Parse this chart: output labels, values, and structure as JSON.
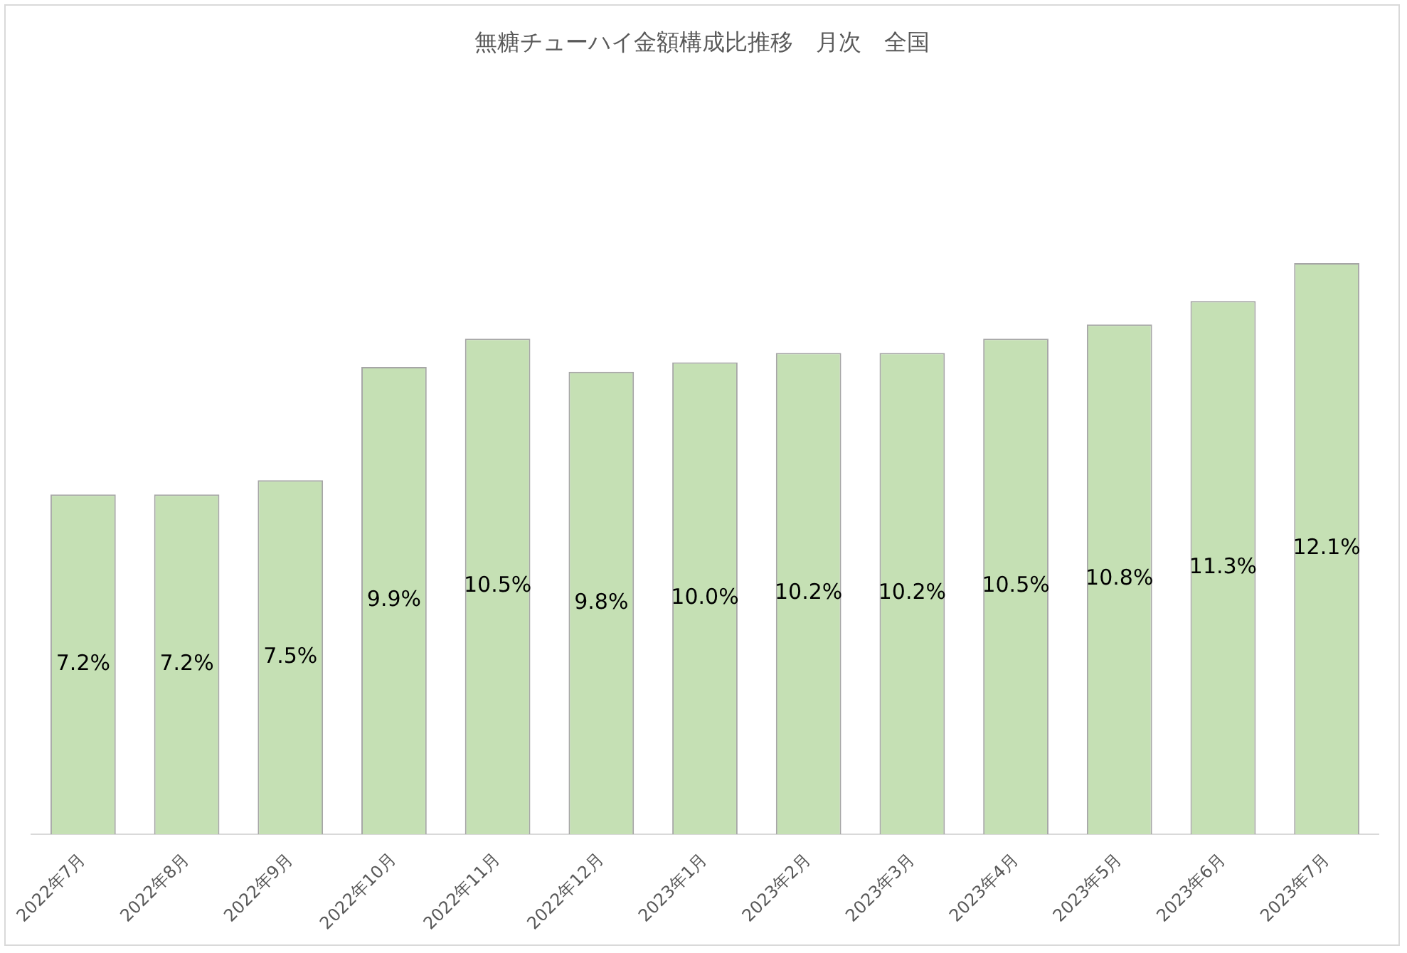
{
  "chart_data": {
    "type": "bar",
    "title": "無糖チューハイ金額構成比推移　月次　全国",
    "categories": [
      "2022年7月",
      "2022年8月",
      "2022年9月",
      "2022年10月",
      "2022年11月",
      "2022年12月",
      "2023年1月",
      "2023年2月",
      "2023年3月",
      "2023年4月",
      "2023年5月",
      "2023年6月",
      "2023年7月"
    ],
    "values": [
      7.2,
      7.2,
      7.5,
      9.9,
      10.5,
      9.8,
      10.0,
      10.2,
      10.2,
      10.5,
      10.8,
      11.3,
      12.1
    ],
    "value_labels": [
      "7.2%",
      "7.2%",
      "7.5%",
      "9.9%",
      "10.5%",
      "9.8%",
      "10.0%",
      "10.2%",
      "10.2%",
      "10.5%",
      "10.8%",
      "11.3%",
      "12.1%"
    ],
    "color": "#c5e0b4"
  }
}
